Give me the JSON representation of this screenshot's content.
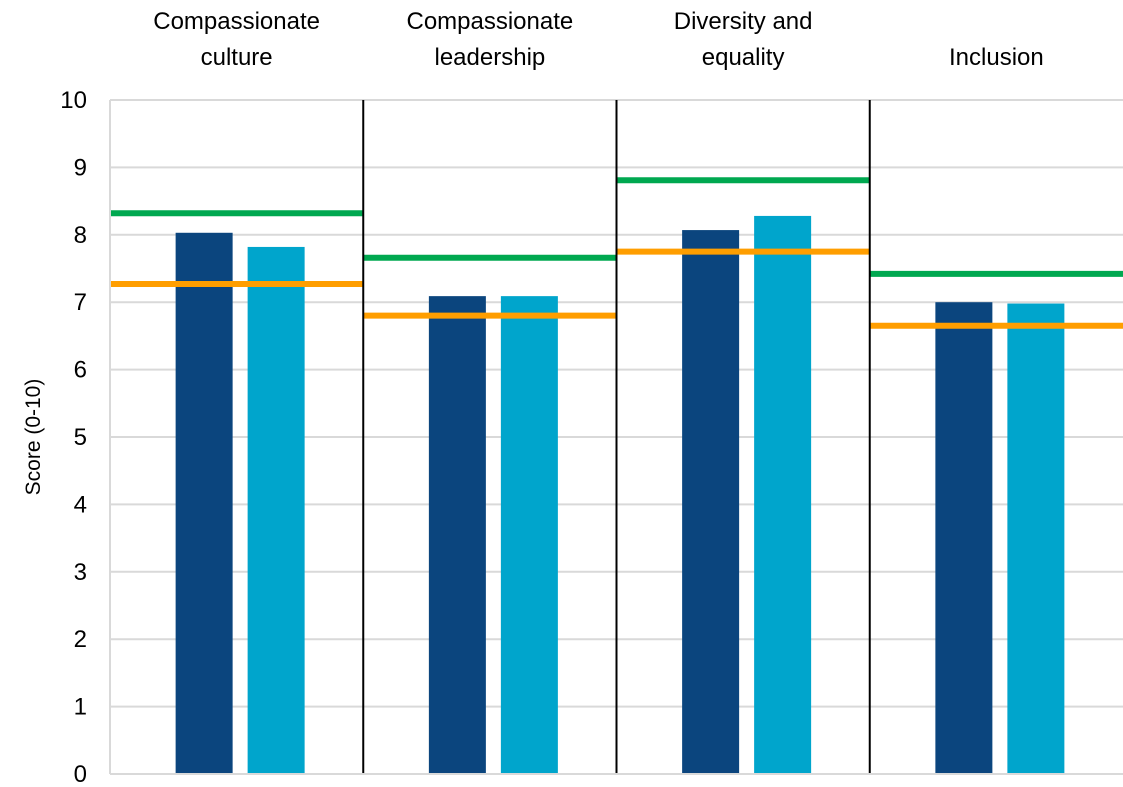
{
  "chart_data": {
    "type": "bar",
    "title": "",
    "xlabel": "",
    "ylabel": "Score (0-10)",
    "ylim": [
      0,
      10
    ],
    "yticks": [
      0,
      1,
      2,
      3,
      4,
      5,
      6,
      7,
      8,
      9,
      10
    ],
    "grid": true,
    "categories": [
      {
        "lines": [
          "Compassionate",
          "culture"
        ]
      },
      {
        "lines": [
          "Compassionate",
          "leadership"
        ]
      },
      {
        "lines": [
          "Diversity and",
          "equality"
        ]
      },
      {
        "lines": [
          "Inclusion"
        ]
      }
    ],
    "series": [
      {
        "values": [
          8.03,
          7.09,
          8.07,
          7.0
        ],
        "color": "#0b457e"
      },
      {
        "values": [
          7.82,
          7.09,
          8.28,
          6.98
        ],
        "color": "#00a5cc"
      }
    ],
    "reference_lines": [
      {
        "values": [
          8.32,
          7.66,
          8.81,
          7.42
        ],
        "color": "#00a850"
      },
      {
        "values": [
          7.27,
          6.8,
          7.75,
          6.65
        ],
        "color": "#ff9e00"
      }
    ]
  }
}
